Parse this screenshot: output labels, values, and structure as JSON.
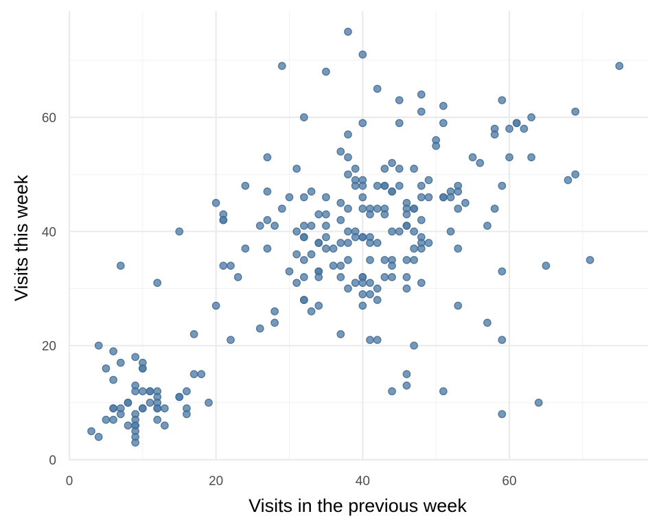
{
  "colors": {
    "point_fill": "#4f7ca6",
    "point_stroke": "#3d6690",
    "grid_major": "#ebebeb",
    "grid_minor": "#f2f2f2",
    "tick_text": "#4d4d4d",
    "background": "#ffffff"
  },
  "chart_data": {
    "type": "scatter",
    "title": "",
    "xlabel": "Visits in the previous week",
    "ylabel": "Visits this week",
    "xlim": [
      0,
      78
    ],
    "ylim": [
      0,
      76
    ],
    "x_ticks": [
      0,
      20,
      40,
      60
    ],
    "y_ticks": [
      0,
      20,
      40,
      60
    ],
    "x_tick_labels": [
      "0",
      "20",
      "40",
      "60"
    ],
    "y_tick_labels": [
      "0",
      "20",
      "40",
      "60"
    ],
    "grid": true,
    "legend": "none",
    "points": [
      [
        3,
        5
      ],
      [
        4,
        4
      ],
      [
        4,
        20
      ],
      [
        5,
        16
      ],
      [
        5,
        7
      ],
      [
        6,
        19
      ],
      [
        6,
        14
      ],
      [
        6,
        9
      ],
      [
        6,
        9
      ],
      [
        6,
        7
      ],
      [
        7,
        17
      ],
      [
        7,
        34
      ],
      [
        7,
        9
      ],
      [
        7,
        8
      ],
      [
        8,
        10
      ],
      [
        8,
        10
      ],
      [
        8,
        6
      ],
      [
        9,
        18
      ],
      [
        9,
        13
      ],
      [
        9,
        12
      ],
      [
        9,
        8
      ],
      [
        9,
        7
      ],
      [
        9,
        6
      ],
      [
        9,
        6
      ],
      [
        9,
        5
      ],
      [
        9,
        4
      ],
      [
        9,
        3
      ],
      [
        10,
        17
      ],
      [
        10,
        16
      ],
      [
        10,
        16
      ],
      [
        10,
        12
      ],
      [
        10,
        9
      ],
      [
        10,
        9
      ],
      [
        11,
        12
      ],
      [
        11,
        12
      ],
      [
        11,
        10
      ],
      [
        12,
        31
      ],
      [
        12,
        12
      ],
      [
        12,
        11
      ],
      [
        12,
        10
      ],
      [
        12,
        9
      ],
      [
        12,
        9
      ],
      [
        12,
        7
      ],
      [
        13,
        9
      ],
      [
        13,
        6
      ],
      [
        15,
        40
      ],
      [
        15,
        11
      ],
      [
        15,
        11
      ],
      [
        16,
        12
      ],
      [
        16,
        9
      ],
      [
        16,
        8
      ],
      [
        17,
        22
      ],
      [
        17,
        15
      ],
      [
        18,
        15
      ],
      [
        19,
        10
      ],
      [
        20,
        45
      ],
      [
        20,
        27
      ],
      [
        21,
        43
      ],
      [
        21,
        42
      ],
      [
        21,
        42
      ],
      [
        21,
        34
      ],
      [
        22,
        34
      ],
      [
        22,
        21
      ],
      [
        23,
        32
      ],
      [
        24,
        48
      ],
      [
        24,
        37
      ],
      [
        26,
        41
      ],
      [
        26,
        23
      ],
      [
        27,
        53
      ],
      [
        27,
        47
      ],
      [
        27,
        42
      ],
      [
        27,
        37
      ],
      [
        28,
        41
      ],
      [
        28,
        26
      ],
      [
        28,
        24
      ],
      [
        29,
        69
      ],
      [
        29,
        44
      ],
      [
        30,
        46
      ],
      [
        30,
        33
      ],
      [
        31,
        51
      ],
      [
        31,
        40
      ],
      [
        31,
        36
      ],
      [
        31,
        31
      ],
      [
        32,
        60
      ],
      [
        32,
        46
      ],
      [
        32,
        41
      ],
      [
        32,
        39
      ],
      [
        32,
        39
      ],
      [
        32,
        35
      ],
      [
        32,
        32
      ],
      [
        32,
        28
      ],
      [
        32,
        28
      ],
      [
        33,
        47
      ],
      [
        33,
        41
      ],
      [
        33,
        36
      ],
      [
        33,
        26
      ],
      [
        34,
        43
      ],
      [
        34,
        38
      ],
      [
        34,
        38
      ],
      [
        34,
        33
      ],
      [
        34,
        33
      ],
      [
        34,
        32
      ],
      [
        34,
        27
      ],
      [
        35,
        68
      ],
      [
        35,
        46
      ],
      [
        35,
        43
      ],
      [
        35,
        41
      ],
      [
        35,
        39
      ],
      [
        35,
        37
      ],
      [
        36,
        37
      ],
      [
        36,
        34
      ],
      [
        37,
        54
      ],
      [
        37,
        45
      ],
      [
        37,
        42
      ],
      [
        37,
        38
      ],
      [
        37,
        34
      ],
      [
        37,
        32
      ],
      [
        37,
        22
      ],
      [
        38,
        75
      ],
      [
        38,
        57
      ],
      [
        38,
        53
      ],
      [
        38,
        50
      ],
      [
        38,
        44
      ],
      [
        38,
        40
      ],
      [
        38,
        38
      ],
      [
        38,
        35
      ],
      [
        38,
        30
      ],
      [
        39,
        51
      ],
      [
        39,
        49
      ],
      [
        39,
        48
      ],
      [
        39,
        40
      ],
      [
        39,
        39
      ],
      [
        39,
        31
      ],
      [
        40,
        71
      ],
      [
        40,
        59
      ],
      [
        40,
        49
      ],
      [
        40,
        48
      ],
      [
        40,
        46
      ],
      [
        40,
        44
      ],
      [
        40,
        39
      ],
      [
        40,
        39
      ],
      [
        40,
        32
      ],
      [
        40,
        32
      ],
      [
        40,
        31
      ],
      [
        40,
        29
      ],
      [
        40,
        27
      ],
      [
        41,
        44
      ],
      [
        41,
        43
      ],
      [
        41,
        39
      ],
      [
        41,
        38
      ],
      [
        41,
        35
      ],
      [
        41,
        31
      ],
      [
        41,
        29
      ],
      [
        41,
        21
      ],
      [
        42,
        65
      ],
      [
        42,
        48
      ],
      [
        42,
        44
      ],
      [
        42,
        38
      ],
      [
        42,
        30
      ],
      [
        42,
        28
      ],
      [
        42,
        21
      ],
      [
        43,
        51
      ],
      [
        43,
        48
      ],
      [
        43,
        48
      ],
      [
        43,
        44
      ],
      [
        43,
        43
      ],
      [
        43,
        35
      ],
      [
        43,
        32
      ],
      [
        44,
        52
      ],
      [
        44,
        47
      ],
      [
        44,
        47
      ],
      [
        44,
        40
      ],
      [
        44,
        35
      ],
      [
        44,
        34
      ],
      [
        44,
        32
      ],
      [
        44,
        12
      ],
      [
        45,
        63
      ],
      [
        45,
        59
      ],
      [
        45,
        51
      ],
      [
        45,
        48
      ],
      [
        45,
        40
      ],
      [
        46,
        45
      ],
      [
        46,
        44
      ],
      [
        46,
        43
      ],
      [
        46,
        41
      ],
      [
        46,
        41
      ],
      [
        46,
        35
      ],
      [
        46,
        32
      ],
      [
        46,
        30
      ],
      [
        46,
        15
      ],
      [
        46,
        13
      ],
      [
        47,
        51
      ],
      [
        47,
        44
      ],
      [
        47,
        44
      ],
      [
        47,
        40
      ],
      [
        47,
        37
      ],
      [
        47,
        35
      ],
      [
        47,
        20
      ],
      [
        48,
        64
      ],
      [
        48,
        61
      ],
      [
        48,
        48
      ],
      [
        48,
        46
      ],
      [
        48,
        42
      ],
      [
        48,
        39
      ],
      [
        48,
        38
      ],
      [
        48,
        37
      ],
      [
        48,
        31
      ],
      [
        49,
        49
      ],
      [
        49,
        46
      ],
      [
        49,
        38
      ],
      [
        50,
        56
      ],
      [
        50,
        55
      ],
      [
        51,
        62
      ],
      [
        51,
        59
      ],
      [
        51,
        46
      ],
      [
        51,
        46
      ],
      [
        51,
        12
      ],
      [
        52,
        47
      ],
      [
        52,
        46
      ],
      [
        52,
        40
      ],
      [
        53,
        48
      ],
      [
        53,
        47
      ],
      [
        53,
        44
      ],
      [
        53,
        37
      ],
      [
        53,
        27
      ],
      [
        54,
        45
      ],
      [
        55,
        53
      ],
      [
        56,
        52
      ],
      [
        57,
        41
      ],
      [
        57,
        24
      ],
      [
        58,
        58
      ],
      [
        58,
        57
      ],
      [
        58,
        44
      ],
      [
        59,
        63
      ],
      [
        59,
        48
      ],
      [
        59,
        33
      ],
      [
        59,
        21
      ],
      [
        59,
        8
      ],
      [
        60,
        58
      ],
      [
        60,
        53
      ],
      [
        61,
        59
      ],
      [
        61,
        59
      ],
      [
        62,
        58
      ],
      [
        63,
        60
      ],
      [
        63,
        53
      ],
      [
        64,
        10
      ],
      [
        65,
        34
      ],
      [
        68,
        49
      ],
      [
        69,
        61
      ],
      [
        69,
        50
      ],
      [
        71,
        35
      ],
      [
        75,
        69
      ]
    ]
  }
}
